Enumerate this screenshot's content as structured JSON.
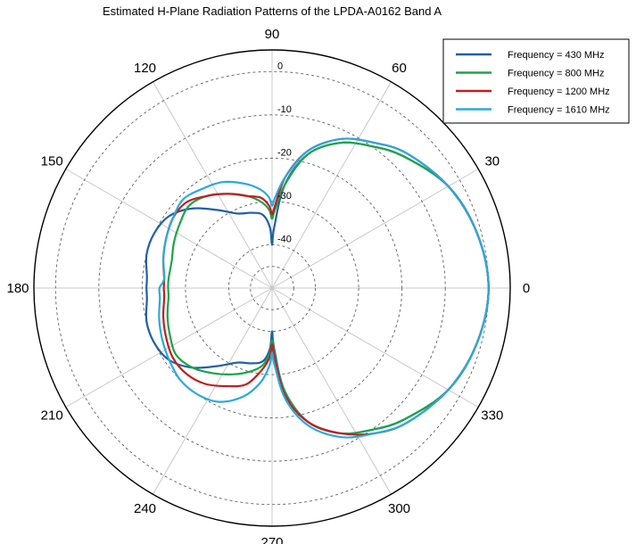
{
  "chart_data": {
    "type": "polar-line",
    "title": "Estimated H-Plane Radiation Patterns of the LPDA-A0162 Band A",
    "angle_unit": "degrees",
    "angle_ticks": [
      0,
      30,
      60,
      90,
      120,
      150,
      180,
      210,
      240,
      270,
      300,
      330
    ],
    "angle_tick_labels": [
      "0",
      "30",
      "60",
      "90",
      "120",
      "150",
      "180",
      "210",
      "240",
      "270",
      "300",
      "330"
    ],
    "radial_unit": "dB",
    "radial_range": [
      -50,
      5
    ],
    "radial_ticks": [
      0,
      -10,
      -20,
      -30,
      -40
    ],
    "radial_tick_labels": [
      "0",
      "-10",
      "-20",
      "-30",
      "-40"
    ],
    "grid": true,
    "legend_position": "top-right",
    "series": [
      {
        "name": "Frequency = 430 MHz",
        "color": "#1f5fa6",
        "angles": [
          0,
          15,
          30,
          45,
          55,
          65,
          75,
          83,
          88,
          90,
          92,
          97,
          105,
          115,
          125,
          135,
          145,
          155,
          165,
          175,
          180,
          185,
          195,
          205,
          215,
          225,
          235,
          245,
          255,
          263,
          268,
          270,
          272,
          277,
          285,
          295,
          305,
          315,
          330,
          345
        ],
        "values": [
          0,
          -1,
          -3,
          -7,
          -10,
          -13,
          -18,
          -26,
          -36,
          -40,
          -36,
          -33,
          -32,
          -31,
          -28,
          -24,
          -21,
          -20,
          -20,
          -21,
          -21,
          -21,
          -20,
          -20,
          -21,
          -24,
          -28,
          -31,
          -32,
          -33,
          -36,
          -40,
          -36,
          -26,
          -18,
          -13,
          -10,
          -7,
          -3,
          -1
        ]
      },
      {
        "name": "Frequency = 800 MHz",
        "color": "#1ea34a",
        "angles": [
          0,
          15,
          30,
          45,
          55,
          65,
          75,
          83,
          88,
          90,
          92,
          97,
          105,
          115,
          125,
          135,
          145,
          155,
          165,
          175,
          180,
          185,
          195,
          205,
          215,
          225,
          235,
          245,
          255,
          263,
          268,
          270,
          272,
          277,
          285,
          295,
          305,
          315,
          330,
          345
        ],
        "values": [
          0,
          -1,
          -3,
          -7,
          -10,
          -13,
          -18,
          -26,
          -32,
          -34,
          -32,
          -30,
          -28,
          -26,
          -24,
          -23,
          -24,
          -25,
          -26,
          -26,
          -26,
          -26,
          -25,
          -24,
          -23,
          -24,
          -26,
          -28,
          -30,
          -32,
          -35,
          -38,
          -35,
          -26,
          -18,
          -13,
          -10,
          -7,
          -3,
          -1
        ]
      },
      {
        "name": "Frequency = 1200 MHz",
        "color": "#c01f1f",
        "angles": [
          0,
          15,
          30,
          45,
          55,
          65,
          75,
          83,
          88,
          90,
          92,
          97,
          105,
          115,
          125,
          135,
          145,
          155,
          165,
          175,
          180,
          185,
          195,
          205,
          215,
          225,
          235,
          245,
          255,
          263,
          268,
          270,
          272,
          277,
          285,
          295,
          305,
          315,
          330,
          345
        ],
        "values": [
          0,
          -1,
          -3,
          -6,
          -9,
          -12,
          -17,
          -24,
          -31,
          -33,
          -31,
          -29,
          -28,
          -26,
          -24,
          -22,
          -22,
          -23,
          -24,
          -25,
          -25,
          -25,
          -24,
          -23,
          -22,
          -22,
          -23,
          -25,
          -27,
          -31,
          -34,
          -37,
          -34,
          -25,
          -18,
          -13,
          -9,
          -6,
          -3,
          -1
        ]
      },
      {
        "name": "Frequency = 1610 MHz",
        "color": "#29a9e0",
        "angles": [
          0,
          15,
          30,
          45,
          55,
          65,
          75,
          83,
          88,
          90,
          92,
          97,
          105,
          115,
          125,
          135,
          145,
          155,
          165,
          175,
          180,
          185,
          195,
          205,
          215,
          225,
          235,
          245,
          255,
          263,
          268,
          270,
          272,
          277,
          285,
          295,
          305,
          315,
          330,
          345
        ],
        "values": [
          0,
          -1,
          -3,
          -6,
          -9,
          -12,
          -17,
          -24,
          -29,
          -31,
          -29,
          -27,
          -25,
          -23,
          -22,
          -21,
          -22,
          -23,
          -24,
          -25,
          -24,
          -24,
          -23,
          -22,
          -21,
          -20,
          -20,
          -21,
          -24,
          -28,
          -32,
          -35,
          -32,
          -24,
          -17,
          -12,
          -9,
          -6,
          -3,
          -1
        ]
      }
    ]
  }
}
